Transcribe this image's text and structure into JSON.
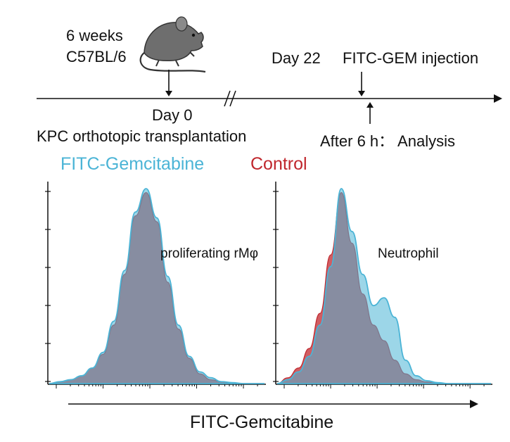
{
  "timeline": {
    "mouse_age": "6 weeks",
    "mouse_strain": "C57BL/6",
    "day0_label": "Day 0",
    "day0_event": "KPC orthotopic transplantation",
    "day22_label": "Day 22",
    "day22_event": "FITC-GEM injection",
    "analysis_label": "After 6 h： Analysis",
    "mouse_icon": "mouse-icon"
  },
  "legend": {
    "fitc_label": "FITC-Gemcitabine",
    "fitc_color": "#4bb4d6",
    "control_label": "Control",
    "control_color": "#c0272d"
  },
  "panels": [
    {
      "label": "proliferating rMφ"
    },
    {
      "label": "Neutrophil"
    }
  ],
  "x_axis_label": "FITC-Gemcitabine",
  "chart_data": [
    {
      "type": "area",
      "title": "proliferating rMφ",
      "x": [
        0,
        0.05,
        0.1,
        0.15,
        0.2,
        0.25,
        0.3,
        0.35,
        0.4,
        0.45,
        0.5,
        0.55,
        0.6,
        0.65,
        0.7,
        0.75,
        0.8,
        0.85,
        0.9,
        0.95,
        1.0
      ],
      "series": [
        {
          "name": "FITC-Gemcitabine",
          "color": "#4bb4d6",
          "values": [
            0.0,
            0.01,
            0.02,
            0.04,
            0.08,
            0.16,
            0.32,
            0.58,
            0.88,
            1.0,
            0.85,
            0.55,
            0.3,
            0.14,
            0.06,
            0.03,
            0.01,
            0.005,
            0.0,
            0.0,
            0.0
          ]
        },
        {
          "name": "Control",
          "color": "#c0272d",
          "values": [
            0.0,
            0.01,
            0.02,
            0.04,
            0.08,
            0.15,
            0.3,
            0.56,
            0.86,
            0.98,
            0.83,
            0.52,
            0.28,
            0.13,
            0.05,
            0.02,
            0.01,
            0.0,
            0.0,
            0.0,
            0.0
          ]
        }
      ]
    },
    {
      "type": "area",
      "title": "Neutrophil",
      "x": [
        0,
        0.05,
        0.1,
        0.15,
        0.2,
        0.25,
        0.3,
        0.35,
        0.4,
        0.45,
        0.5,
        0.55,
        0.6,
        0.65,
        0.7,
        0.75,
        0.8,
        0.85,
        0.9,
        0.95,
        1.0
      ],
      "series": [
        {
          "name": "FITC-Gemcitabine",
          "color": "#4bb4d6",
          "values": [
            0.0,
            0.02,
            0.06,
            0.14,
            0.3,
            0.6,
            1.0,
            0.78,
            0.56,
            0.4,
            0.44,
            0.34,
            0.12,
            0.04,
            0.015,
            0.005,
            0.0,
            0.0,
            0.0,
            0.0,
            0.0
          ]
        },
        {
          "name": "Control",
          "color": "#c0272d",
          "values": [
            0.0,
            0.03,
            0.08,
            0.18,
            0.36,
            0.66,
            0.98,
            0.72,
            0.46,
            0.3,
            0.22,
            0.12,
            0.05,
            0.02,
            0.008,
            0.0,
            0.0,
            0.0,
            0.0,
            0.0,
            0.0
          ]
        }
      ]
    }
  ]
}
